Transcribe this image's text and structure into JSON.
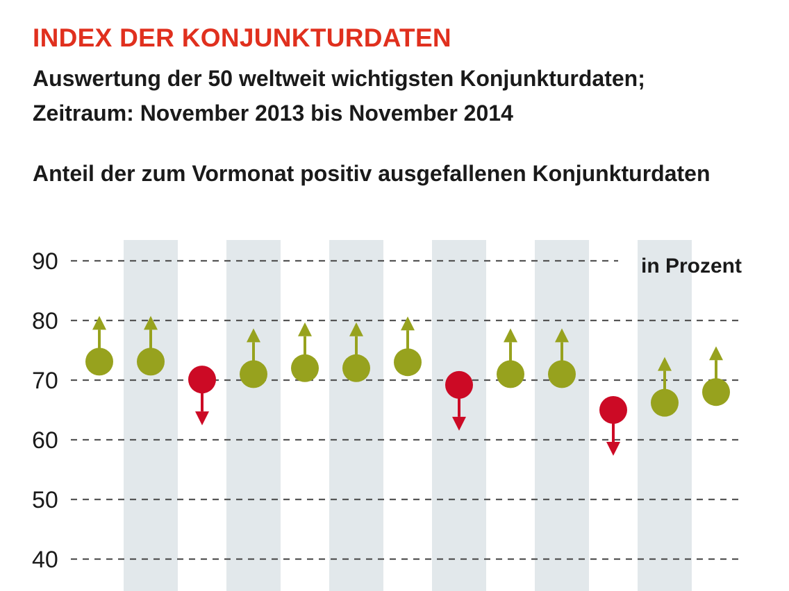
{
  "header": {
    "title": "INDEX DER KONJUNKTURDATEN",
    "subtitle_line1": "Auswertung der 50 weltweit wichtigsten Konjunkturdaten;",
    "subtitle_line2": "Zeitraum: November 2013 bis November 2014",
    "chart_heading": "Anteil der zum Vormonat positiv ausgefallenen Konjunkturdaten"
  },
  "colors": {
    "title": "#e0301e",
    "up": "#97a21e",
    "down": "#cc0a25",
    "band": "#e2e8eb",
    "grid": "#555555"
  },
  "chart_data": {
    "type": "scatter",
    "unit_label": "in Prozent",
    "ylim": [
      40,
      90
    ],
    "yticks": [
      90,
      80,
      70,
      60,
      50,
      40
    ],
    "grid": true,
    "points": [
      {
        "value": 73.1,
        "direction": "up"
      },
      {
        "value": 73.1,
        "direction": "up"
      },
      {
        "value": 70.1,
        "direction": "down"
      },
      {
        "value": 71.0,
        "direction": "up"
      },
      {
        "value": 72.0,
        "direction": "up"
      },
      {
        "value": 72.0,
        "direction": "up"
      },
      {
        "value": 73.0,
        "direction": "up"
      },
      {
        "value": 69.2,
        "direction": "down"
      },
      {
        "value": 71.0,
        "direction": "up"
      },
      {
        "value": 71.0,
        "direction": "up"
      },
      {
        "value": 65.0,
        "direction": "down"
      },
      {
        "value": 66.2,
        "direction": "up"
      },
      {
        "value": 68.0,
        "direction": "up"
      }
    ]
  }
}
